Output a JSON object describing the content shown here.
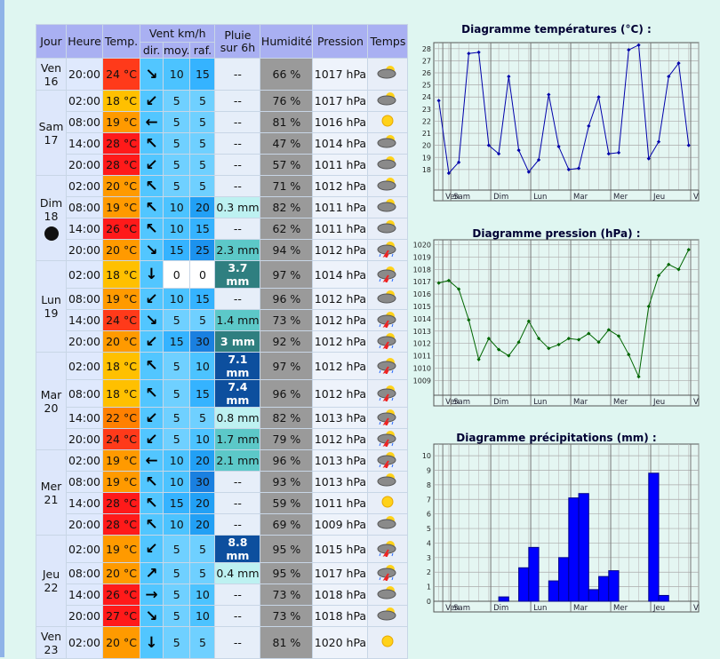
{
  "table": {
    "header": {
      "jour": "Jour",
      "heure": "Heure",
      "temp": "Temp.",
      "vent": "Vent km/h",
      "dir": "dir.",
      "moy": "moy.",
      "raf": "raf.",
      "pluie": "Pluie sur 6h",
      "humidite": "Humidité",
      "pression": "Pression",
      "temps": "Temps"
    },
    "days": [
      {
        "name": "Ven",
        "date": "16",
        "rows": [
          {
            "heure": "20:00",
            "temp": "24 °C",
            "dir": "↘",
            "moy": "10",
            "raf": "15",
            "pluie": "--",
            "hum": "66 %",
            "pression": "1017 hPa"
          }
        ]
      },
      {
        "name": "Sam",
        "date": "17",
        "rows": [
          {
            "heure": "02:00",
            "temp": "18 °C",
            "dir": "↙",
            "moy": "5",
            "raf": "5",
            "pluie": "--",
            "hum": "76 %",
            "pression": "1017 hPa"
          },
          {
            "heure": "08:00",
            "temp": "19 °C",
            "dir": "←",
            "moy": "5",
            "raf": "5",
            "pluie": "--",
            "hum": "81 %",
            "pression": "1016 hPa"
          },
          {
            "heure": "14:00",
            "temp": "28 °C",
            "dir": "↖",
            "moy": "5",
            "raf": "5",
            "pluie": "--",
            "hum": "47 %",
            "pression": "1014 hPa"
          },
          {
            "heure": "20:00",
            "temp": "28 °C",
            "dir": "↙",
            "moy": "5",
            "raf": "5",
            "pluie": "--",
            "hum": "57 %",
            "pression": "1011 hPa"
          }
        ]
      },
      {
        "name": "Dim",
        "date": "18",
        "rows": [
          {
            "heure": "02:00",
            "temp": "20 °C",
            "dir": "↖",
            "moy": "5",
            "raf": "5",
            "pluie": "--",
            "hum": "71 %",
            "pression": "1012 hPa"
          },
          {
            "heure": "08:00",
            "temp": "19 °C",
            "dir": "↖",
            "moy": "10",
            "raf": "20",
            "pluie": "0.3 mm",
            "hum": "82 %",
            "pression": "1011 hPa"
          },
          {
            "heure": "14:00",
            "temp": "26 °C",
            "dir": "↖",
            "moy": "10",
            "raf": "15",
            "pluie": "--",
            "hum": "62 %",
            "pression": "1011 hPa"
          },
          {
            "heure": "20:00",
            "temp": "20 °C",
            "dir": "↘",
            "moy": "15",
            "raf": "25",
            "pluie": "2.3 mm",
            "hum": "94 %",
            "pression": "1012 hPa"
          }
        ]
      },
      {
        "name": "Lun",
        "date": "19",
        "rows": [
          {
            "heure": "02:00",
            "temp": "18 °C",
            "dir": "↓",
            "moy": "0",
            "raf": "0",
            "pluie": "3.7 mm",
            "hum": "97 %",
            "pression": "1014 hPa"
          },
          {
            "heure": "08:00",
            "temp": "19 °C",
            "dir": "↙",
            "moy": "10",
            "raf": "15",
            "pluie": "--",
            "hum": "96 %",
            "pression": "1012 hPa"
          },
          {
            "heure": "14:00",
            "temp": "24 °C",
            "dir": "↘",
            "moy": "5",
            "raf": "5",
            "pluie": "1.4 mm",
            "hum": "73 %",
            "pression": "1012 hPa"
          },
          {
            "heure": "20:00",
            "temp": "20 °C",
            "dir": "↙",
            "moy": "15",
            "raf": "30",
            "pluie": "3 mm",
            "hum": "92 %",
            "pression": "1012 hPa"
          }
        ]
      },
      {
        "name": "Mar",
        "date": "20",
        "rows": [
          {
            "heure": "02:00",
            "temp": "18 °C",
            "dir": "↖",
            "moy": "5",
            "raf": "10",
            "pluie": "7.1 mm",
            "hum": "97 %",
            "pression": "1012 hPa"
          },
          {
            "heure": "08:00",
            "temp": "18 °C",
            "dir": "↖",
            "moy": "5",
            "raf": "15",
            "pluie": "7.4 mm",
            "hum": "96 %",
            "pression": "1012 hPa"
          },
          {
            "heure": "14:00",
            "temp": "22 °C",
            "dir": "↙",
            "moy": "5",
            "raf": "5",
            "pluie": "0.8 mm",
            "hum": "82 %",
            "pression": "1013 hPa"
          },
          {
            "heure": "20:00",
            "temp": "24 °C",
            "dir": "↙",
            "moy": "5",
            "raf": "10",
            "pluie": "1.7 mm",
            "hum": "79 %",
            "pression": "1012 hPa"
          }
        ]
      },
      {
        "name": "Mer",
        "date": "21",
        "rows": [
          {
            "heure": "02:00",
            "temp": "19 °C",
            "dir": "←",
            "moy": "10",
            "raf": "20",
            "pluie": "2.1 mm",
            "hum": "96 %",
            "pression": "1013 hPa"
          },
          {
            "heure": "08:00",
            "temp": "19 °C",
            "dir": "↖",
            "moy": "10",
            "raf": "30",
            "pluie": "--",
            "hum": "93 %",
            "pression": "1013 hPa"
          },
          {
            "heure": "14:00",
            "temp": "28 °C",
            "dir": "↖",
            "moy": "15",
            "raf": "20",
            "pluie": "--",
            "hum": "59 %",
            "pression": "1011 hPa"
          },
          {
            "heure": "20:00",
            "temp": "28 °C",
            "dir": "↖",
            "moy": "10",
            "raf": "20",
            "pluie": "--",
            "hum": "69 %",
            "pression": "1009 hPa"
          }
        ]
      },
      {
        "name": "Jeu",
        "date": "22",
        "rows": [
          {
            "heure": "02:00",
            "temp": "19 °C",
            "dir": "↙",
            "moy": "5",
            "raf": "5",
            "pluie": "8.8 mm",
            "hum": "95 %",
            "pression": "1015 hPa"
          },
          {
            "heure": "08:00",
            "temp": "20 °C",
            "dir": "↗",
            "moy": "5",
            "raf": "5",
            "pluie": "0.4 mm",
            "hum": "95 %",
            "pression": "1017 hPa"
          },
          {
            "heure": "14:00",
            "temp": "26 °C",
            "dir": "→",
            "moy": "5",
            "raf": "10",
            "pluie": "--",
            "hum": "73 %",
            "pression": "1018 hPa"
          },
          {
            "heure": "20:00",
            "temp": "27 °C",
            "dir": "↘",
            "moy": "5",
            "raf": "10",
            "pluie": "--",
            "hum": "73 %",
            "pression": "1018 hPa"
          }
        ]
      },
      {
        "name": "Ven",
        "date": "23",
        "rows": [
          {
            "heure": "02:00",
            "temp": "20 °C",
            "dir": "↓",
            "moy": "5",
            "raf": "5",
            "pluie": "--",
            "hum": "81 %",
            "pression": "1020 hPa"
          }
        ]
      }
    ]
  },
  "chart_data": [
    {
      "type": "line",
      "title": "Diagramme températures (°C) :",
      "color": "#0000aa",
      "values": [
        23.7,
        17.7,
        18.6,
        27.6,
        27.7,
        20,
        19.3,
        25.7,
        19.6,
        17.8,
        18.8,
        24.2,
        19.9,
        18,
        18.1,
        21.6,
        24,
        19.3,
        19.4,
        27.9,
        28.3,
        18.9,
        20.3,
        25.7,
        26.8,
        20
      ],
      "xlim": [
        -0.5,
        26
      ],
      "xticks": [
        {
          "value": 0.4,
          "label": "Ven"
        },
        {
          "value": 1.2,
          "label": "Sam"
        },
        {
          "value": 5.2,
          "label": "Dim"
        },
        {
          "value": 9.2,
          "label": "Lun"
        },
        {
          "value": 13.2,
          "label": "Mar"
        },
        {
          "value": 17.2,
          "label": "Mer"
        },
        {
          "value": 21.2,
          "label": "Jeu"
        },
        {
          "value": 25.2,
          "label": "V"
        }
      ],
      "ylim": [
        16.3,
        28.5
      ],
      "yticks": [
        18,
        19,
        20,
        21,
        22,
        23,
        24,
        25,
        26,
        27,
        28
      ],
      "grid": true
    },
    {
      "type": "line",
      "title": "Diagramme pression (hPa) :",
      "color": "#006600",
      "values": [
        1016.9,
        1017.1,
        1016.4,
        1013.9,
        1010.7,
        1012.4,
        1011.5,
        1011,
        1012.1,
        1013.8,
        1012.4,
        1011.6,
        1011.9,
        1012.4,
        1012.3,
        1012.8,
        1012.1,
        1013.1,
        1012.6,
        1011.1,
        1009.3,
        1015,
        1017.5,
        1018.4,
        1018,
        1019.6
      ],
      "xlim": [
        -0.5,
        26
      ],
      "xticks": [
        {
          "value": 0.4,
          "label": "Ven"
        },
        {
          "value": 1.2,
          "label": "Sam"
        },
        {
          "value": 5.2,
          "label": "Dim"
        },
        {
          "value": 9.2,
          "label": "Lun"
        },
        {
          "value": 13.2,
          "label": "Mar"
        },
        {
          "value": 17.2,
          "label": "Mer"
        },
        {
          "value": 21.2,
          "label": "Jeu"
        },
        {
          "value": 25.2,
          "label": "V"
        }
      ],
      "ylim": [
        1007.8,
        1020.4
      ],
      "yticks": [
        1009,
        1010,
        1011,
        1012,
        1013,
        1014,
        1015,
        1016,
        1017,
        1018,
        1019,
        1020
      ],
      "grid": true
    },
    {
      "type": "bar",
      "title": "Diagramme précipitations (mm) :",
      "color": "#0000ff",
      "values": [
        0,
        0,
        0,
        0,
        0,
        0,
        0.3,
        0,
        2.3,
        3.7,
        0,
        1.4,
        3,
        7.1,
        7.4,
        0.8,
        1.7,
        2.1,
        0,
        0,
        0,
        8.8,
        0.4,
        0,
        0,
        0
      ],
      "xlim": [
        -0.5,
        26
      ],
      "xticks": [
        {
          "value": 0.4,
          "label": "Ven"
        },
        {
          "value": 1.2,
          "label": "Sam"
        },
        {
          "value": 5.2,
          "label": "Dim"
        },
        {
          "value": 9.2,
          "label": "Lun"
        },
        {
          "value": 13.2,
          "label": "Mar"
        },
        {
          "value": 17.2,
          "label": "Mer"
        },
        {
          "value": 21.2,
          "label": "Jeu"
        },
        {
          "value": 25.2,
          "label": "V"
        }
      ],
      "ylim": [
        0,
        10.8
      ],
      "yticks": [
        0,
        1,
        2,
        3,
        4,
        5,
        6,
        7,
        8,
        9,
        10
      ],
      "grid": true
    }
  ]
}
